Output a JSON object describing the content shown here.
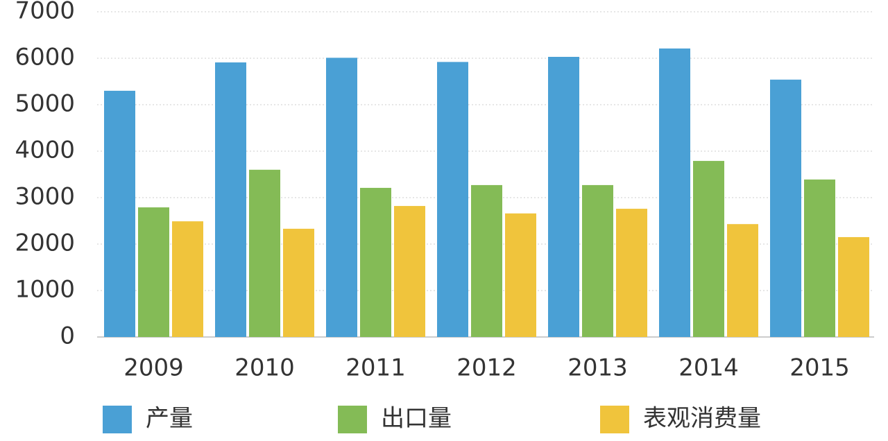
{
  "chart_data": {
    "type": "bar",
    "categories": [
      "2009",
      "2010",
      "2011",
      "2012",
      "2013",
      "2014",
      "2015"
    ],
    "series": [
      {
        "name": "产量",
        "color": "#4aa0d5",
        "values": [
          5300,
          5910,
          6010,
          5920,
          6030,
          6210,
          5540
        ]
      },
      {
        "name": "出口量",
        "color": "#84bb56",
        "values": [
          2790,
          3600,
          3210,
          3270,
          3270,
          3790,
          3390
        ]
      },
      {
        "name": "表观消费量",
        "color": "#f0c43c",
        "values": [
          2490,
          2330,
          2820,
          2660,
          2760,
          2430,
          2150
        ]
      }
    ],
    "ylim": [
      0,
      7000
    ],
    "yticks": [
      0,
      1000,
      2000,
      3000,
      4000,
      5000,
      6000,
      7000
    ],
    "grid": true,
    "legend": "bottom"
  }
}
